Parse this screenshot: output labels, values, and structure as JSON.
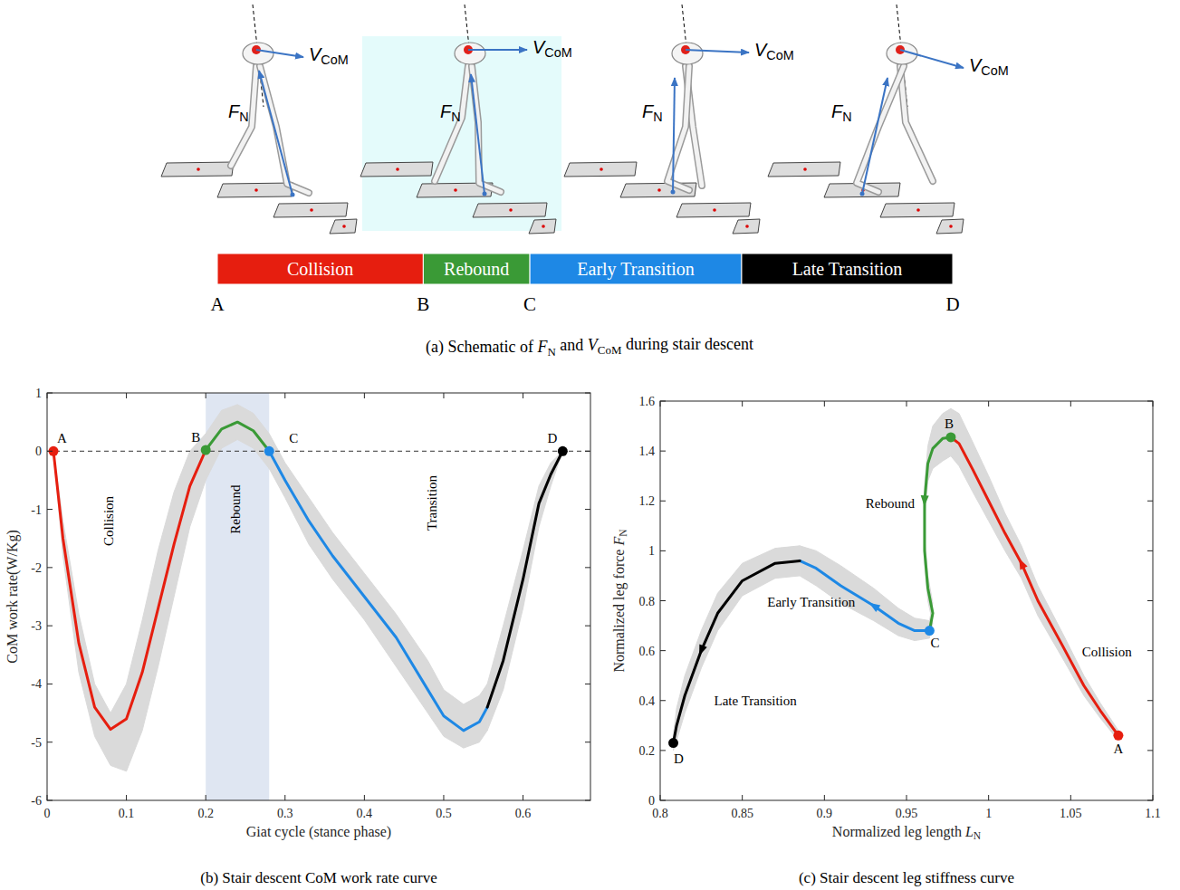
{
  "panel_a": {
    "frames": [
      {
        "force": {
          "symbol": "F",
          "subscript": "N"
        },
        "velocity": {
          "symbol": "V",
          "subscript": "CoM"
        },
        "highlighted": false
      },
      {
        "force": {
          "symbol": "F",
          "subscript": "N"
        },
        "velocity": {
          "symbol": "V",
          "subscript": "CoM"
        },
        "highlighted": true
      },
      {
        "force": {
          "symbol": "F",
          "subscript": "N"
        },
        "velocity": {
          "symbol": "V",
          "subscript": "CoM"
        },
        "highlighted": false
      },
      {
        "force": {
          "symbol": "F",
          "subscript": "N"
        },
        "velocity": {
          "symbol": "V",
          "subscript": "CoM"
        },
        "highlighted": false
      }
    ],
    "phases": [
      {
        "label": "Collision",
        "color": "#e61e0f"
      },
      {
        "label": "Rebound",
        "color": "#3a9a36"
      },
      {
        "label": "Early Transition",
        "color": "#1e88e5"
      },
      {
        "label": "Late Transition",
        "color": "#000000"
      }
    ],
    "letters": [
      {
        "label": "A",
        "boundary": 0
      },
      {
        "label": "B",
        "boundary": 1
      },
      {
        "label": "C",
        "boundary": 2
      },
      {
        "label": "D",
        "boundary": 4
      }
    ],
    "caption": [
      "(a) Schematic of ",
      {
        "symbol": "F",
        "subscript": "N"
      },
      " and ",
      {
        "symbol": "V",
        "subscript": "CoM"
      },
      " during stair descent"
    ]
  },
  "chart_data": [
    {
      "type": "line",
      "caption": "(b) Stair descent CoM work rate curve",
      "x_label": "Giat cycle (stance phase)",
      "y_label": "CoM work rate(W/Kg)",
      "xlim": [
        0,
        0.685
      ],
      "ylim": [
        -6,
        1
      ],
      "xticks": [
        0,
        0.1,
        0.2,
        0.3,
        0.4,
        0.5,
        0.6
      ],
      "yticks": [
        -6,
        -5,
        -4,
        -3,
        -2,
        -1,
        0,
        1
      ],
      "grid": false,
      "hline": 0,
      "shaded_region": [
        0.2,
        0.28
      ],
      "series": [
        {
          "color": "#e61e0f",
          "marker": "none",
          "x": [
            0.008,
            0.02,
            0.04,
            0.06,
            0.08,
            0.1,
            0.12,
            0.14,
            0.16,
            0.18,
            0.2
          ],
          "values": [
            0,
            -1.5,
            -3.3,
            -4.4,
            -4.78,
            -4.6,
            -3.8,
            -2.7,
            -1.6,
            -0.6,
            0.02
          ],
          "upper": [
            0,
            -1.2,
            -2.8,
            -4.0,
            -4.5,
            -4.0,
            -2.9,
            -1.7,
            -0.7,
            0,
            0.3
          ],
          "lower": [
            0,
            -1.8,
            -3.8,
            -4.9,
            -5.4,
            -5.5,
            -4.8,
            -3.7,
            -2.5,
            -1.3,
            -0.5
          ]
        },
        {
          "color": "#3a9a36",
          "marker": "none",
          "x": [
            0.2,
            0.22,
            0.24,
            0.26,
            0.28
          ],
          "values": [
            0.02,
            0.38,
            0.5,
            0.35,
            0
          ],
          "upper": [
            0.3,
            0.7,
            0.8,
            0.65,
            0.3
          ],
          "lower": [
            -0.5,
            0.05,
            0.2,
            0.05,
            -0.3
          ]
        },
        {
          "color": "#1e88e5",
          "marker": "none",
          "x": [
            0.28,
            0.3,
            0.33,
            0.36,
            0.4,
            0.44,
            0.48,
            0.5,
            0.525,
            0.545,
            0.555
          ],
          "values": [
            0,
            -0.5,
            -1.2,
            -1.8,
            -2.5,
            -3.2,
            -4.1,
            -4.55,
            -4.8,
            -4.65,
            -4.4
          ],
          "upper": [
            0.3,
            -0.2,
            -0.8,
            -1.4,
            -2.1,
            -2.8,
            -3.6,
            -4.1,
            -4.35,
            -4.2,
            -4.0
          ],
          "lower": [
            -0.3,
            -0.8,
            -1.6,
            -2.2,
            -2.9,
            -3.7,
            -4.5,
            -4.9,
            -5.1,
            -5.0,
            -4.8
          ]
        },
        {
          "color": "#000000",
          "marker": "none",
          "x": [
            0.555,
            0.575,
            0.6,
            0.62,
            0.635,
            0.65
          ],
          "values": [
            -4.4,
            -3.6,
            -2.2,
            -0.9,
            -0.4,
            0
          ],
          "upper": [
            -4.0,
            -3.0,
            -1.7,
            -0.6,
            -0.2,
            0
          ],
          "lower": [
            -4.8,
            -4.1,
            -2.7,
            -1.3,
            -0.6,
            0
          ]
        }
      ],
      "points": [
        {
          "label": "A",
          "x": 0.008,
          "y": 0,
          "color": "#e61e0f"
        },
        {
          "label": "B",
          "x": 0.2,
          "y": 0.02,
          "color": "#3a9a36"
        },
        {
          "label": "C",
          "x": 0.28,
          "y": 0,
          "color": "#1e88e5"
        },
        {
          "label": "D",
          "x": 0.65,
          "y": 0,
          "color": "#000000"
        }
      ],
      "annotations": [
        {
          "text": "Collision",
          "x": 0.0776,
          "y": -1.2
        },
        {
          "text": "Rebound",
          "x": 0.237,
          "y": -1.0
        },
        {
          "text": "Transition",
          "x": 0.485,
          "y": -0.89
        }
      ]
    },
    {
      "type": "line",
      "caption": "(c) Stair descent leg stiffness curve",
      "x_label": [
        "Normalized leg length  ",
        {
          "symbol": "L",
          "subscript": "N"
        }
      ],
      "y_label": [
        "Normalized leg force  ",
        {
          "symbol": "F",
          "subscript": "N"
        }
      ],
      "xlim": [
        0.8,
        1.1
      ],
      "ylim": [
        0,
        1.6
      ],
      "xticks": [
        0.8,
        0.85,
        0.9,
        0.95,
        1,
        1.05,
        1.1
      ],
      "yticks": [
        0,
        0.2,
        0.4,
        0.6,
        0.8,
        1,
        1.2,
        1.4,
        1.6
      ],
      "grid": false,
      "series": [
        {
          "color": "#e61e0f",
          "marker": "arrow",
          "x": [
            1.079,
            1.068,
            1.058,
            1.045,
            1.03,
            1.02,
            1.01,
            1.0,
            0.99,
            0.982,
            0.977
          ],
          "values": [
            0.26,
            0.36,
            0.46,
            0.62,
            0.8,
            0.95,
            1.07,
            1.2,
            1.33,
            1.43,
            1.455
          ],
          "upper": [
            0.28,
            0.39,
            0.5,
            0.67,
            0.86,
            1.02,
            1.15,
            1.3,
            1.44,
            1.55,
            1.57
          ],
          "lower": [
            0.24,
            0.33,
            0.42,
            0.57,
            0.74,
            0.89,
            1.0,
            1.12,
            1.24,
            1.34,
            1.38
          ]
        },
        {
          "color": "#3a9a36",
          "marker": "arrow",
          "x": [
            0.977,
            0.972,
            0.966,
            0.963,
            0.961,
            0.961,
            0.963,
            0.966,
            0.964
          ],
          "values": [
            1.455,
            1.45,
            1.41,
            1.35,
            1.2,
            1.0,
            0.85,
            0.75,
            0.68
          ],
          "upper": [
            1.57,
            1.55,
            1.5,
            1.42,
            1.26,
            1.05,
            0.9,
            0.79,
            0.72
          ],
          "lower": [
            1.38,
            1.36,
            1.33,
            1.28,
            1.14,
            0.95,
            0.8,
            0.71,
            0.65
          ]
        },
        {
          "color": "#1e88e5",
          "marker": "arrow",
          "x": [
            0.964,
            0.955,
            0.945,
            0.93,
            0.91,
            0.895,
            0.885
          ],
          "values": [
            0.68,
            0.68,
            0.71,
            0.78,
            0.86,
            0.93,
            0.96
          ],
          "upper": [
            0.72,
            0.73,
            0.77,
            0.85,
            0.94,
            1.0,
            1.02
          ],
          "lower": [
            0.65,
            0.64,
            0.66,
            0.72,
            0.79,
            0.86,
            0.9
          ]
        },
        {
          "color": "#000000",
          "marker": "arrow",
          "x": [
            0.885,
            0.87,
            0.85,
            0.835,
            0.825,
            0.815,
            0.81,
            0.808
          ],
          "values": [
            0.96,
            0.95,
            0.88,
            0.75,
            0.6,
            0.42,
            0.3,
            0.23
          ],
          "upper": [
            1.02,
            1.01,
            0.95,
            0.83,
            0.68,
            0.5,
            0.37,
            0.26
          ],
          "lower": [
            0.9,
            0.89,
            0.82,
            0.68,
            0.53,
            0.35,
            0.24,
            0.2
          ]
        }
      ],
      "points": [
        {
          "label": "A",
          "x": 1.079,
          "y": 0.26,
          "color": "#e61e0f"
        },
        {
          "label": "B",
          "x": 0.977,
          "y": 1.455,
          "color": "#3a9a36"
        },
        {
          "label": "C",
          "x": 0.964,
          "y": 0.68,
          "color": "#1e88e5"
        },
        {
          "label": "D",
          "x": 0.808,
          "y": 0.23,
          "color": "#000000"
        }
      ],
      "annotations": [
        {
          "text": "Collision",
          "x": 1.072,
          "y": 0.595
        },
        {
          "text": "Rebound",
          "x": 0.94,
          "y": 1.19
        },
        {
          "text": "Early Transition",
          "x": 0.892,
          "y": 0.795
        },
        {
          "text": "Late Transition",
          "x": 0.858,
          "y": 0.4
        }
      ]
    }
  ]
}
